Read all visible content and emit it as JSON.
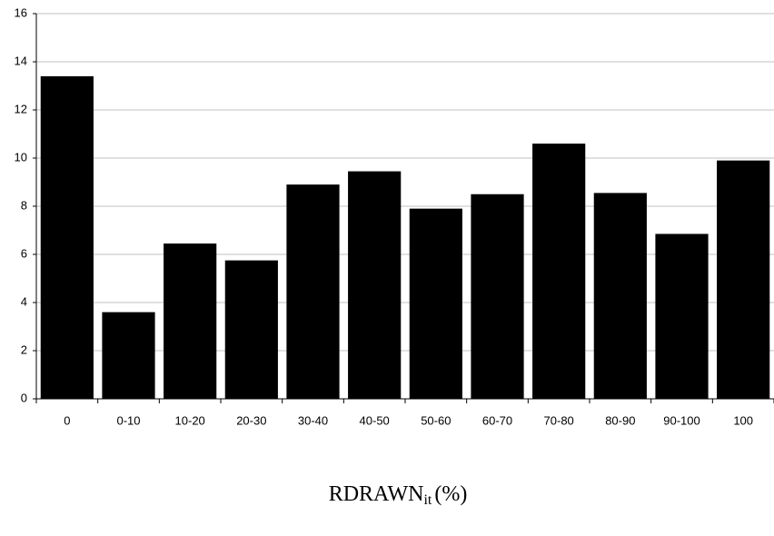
{
  "chart_data": {
    "type": "bar",
    "categories": [
      "0",
      "0-10",
      "10-20",
      "20-30",
      "30-40",
      "40-50",
      "50-60",
      "60-70",
      "70-80",
      "80-90",
      "90-100",
      "100"
    ],
    "values": [
      13.4,
      3.6,
      6.45,
      5.75,
      8.9,
      9.45,
      7.9,
      8.5,
      10.6,
      8.55,
      6.85,
      9.9
    ],
    "color": "#000000",
    "ylim": [
      0,
      16
    ],
    "yticks": [
      0,
      2,
      4,
      6,
      8,
      10,
      12,
      14,
      16
    ],
    "grid": true,
    "xlabel": {
      "main": "RDRAWN",
      "sub": "it",
      "suffix": "(%)"
    }
  }
}
